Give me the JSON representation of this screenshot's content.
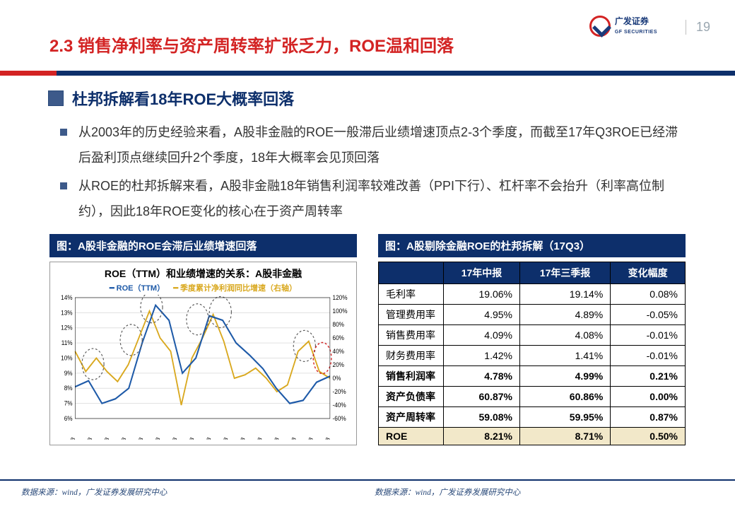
{
  "page_number": "19",
  "logo": {
    "cn": "广发证券",
    "en": "GF SECURITIES"
  },
  "section_title": "2.3 销售净利率与资产周转率扩张乏力，ROE温和回落",
  "subheading": "杜邦拆解看18年ROE大概率回落",
  "bullets": [
    "从2003年的历史经验来看，A股非金融的ROE一般滞后业绩增速顶点2-3个季度，而截至17年Q3ROE已经滞后盈利顶点继续回升2个季度，18年大概率会见顶回落",
    "从ROE的杜邦拆解来看，A股非金融18年销售利润率较难改善（PPI下行）、杠杆率不会抬升（利率高位制约），因此18年ROE变化的核心在于资产周转率"
  ],
  "left_label": "图：A股非金融的ROE会滞后业绩增速回落",
  "right_label": "图：A股剔除金融ROE的杜邦拆解（17Q3）",
  "chart": {
    "title": "ROE（TTM）和业绩增速的关系：A股非金融",
    "legend_left": "━ ROE（TTM）",
    "legend_right": "━ 季度累计净利润同比增速（右轴）",
    "x_labels": [
      "2003/3",
      "2004/3",
      "2005/3",
      "2006/3",
      "2007/3",
      "2008/3",
      "2009/3",
      "2010/3",
      "2011/3",
      "2012/3",
      "2013/3",
      "2014/3",
      "2015/3",
      "2016/3",
      "2017/3",
      "2018/3"
    ],
    "y_left": {
      "min": 6,
      "max": 14,
      "step": 1,
      "color": "#1e5aa8"
    },
    "y_right": {
      "min": -60,
      "max": 120,
      "step": 20,
      "color": "#d9a81e"
    },
    "roe": [
      8.1,
      8.5,
      7.0,
      7.3,
      8.0,
      11.0,
      13.5,
      12.5,
      9.0,
      10.0,
      12.8,
      12.5,
      11.0,
      10.2,
      9.3,
      8.0,
      7.0,
      7.2,
      8.4,
      8.8
    ],
    "growth": [
      40,
      10,
      30,
      10,
      -5,
      20,
      60,
      100,
      60,
      40,
      -40,
      30,
      60,
      95,
      55,
      0,
      5,
      15,
      0,
      -20,
      -10,
      40,
      55,
      10,
      0
    ],
    "grid_color": "#e0e0e0",
    "roe_color": "#1e5aa8",
    "growth_color": "#d9a81e",
    "dash_circle_color": "#555",
    "highlight_circle_color": "#d32323"
  },
  "table": {
    "headers": [
      "",
      "17年中报",
      "17年三季报",
      "变化幅度"
    ],
    "rows": [
      {
        "label": "毛利率",
        "a": "19.06%",
        "b": "19.14%",
        "c": "0.08%",
        "em": false
      },
      {
        "label": "管理费用率",
        "a": "4.95%",
        "b": "4.89%",
        "c": "-0.05%",
        "em": false
      },
      {
        "label": "销售费用率",
        "a": "4.09%",
        "b": "4.08%",
        "c": "-0.01%",
        "em": false
      },
      {
        "label": "财务费用率",
        "a": "1.42%",
        "b": "1.41%",
        "c": "-0.01%",
        "em": false
      },
      {
        "label": "销售利润率",
        "a": "4.78%",
        "b": "4.99%",
        "c": "0.21%",
        "em": true
      },
      {
        "label": "资产负债率",
        "a": "60.87%",
        "b": "60.86%",
        "c": "0.00%",
        "em": true
      },
      {
        "label": "资产周转率",
        "a": "59.08%",
        "b": "59.95%",
        "c": "0.87%",
        "em": true
      }
    ],
    "roe_row": {
      "label": "ROE",
      "a": "8.21%",
      "b": "8.71%",
      "c": "0.50%"
    }
  },
  "source": "数据来源：wind，广发证券发展研究中心"
}
